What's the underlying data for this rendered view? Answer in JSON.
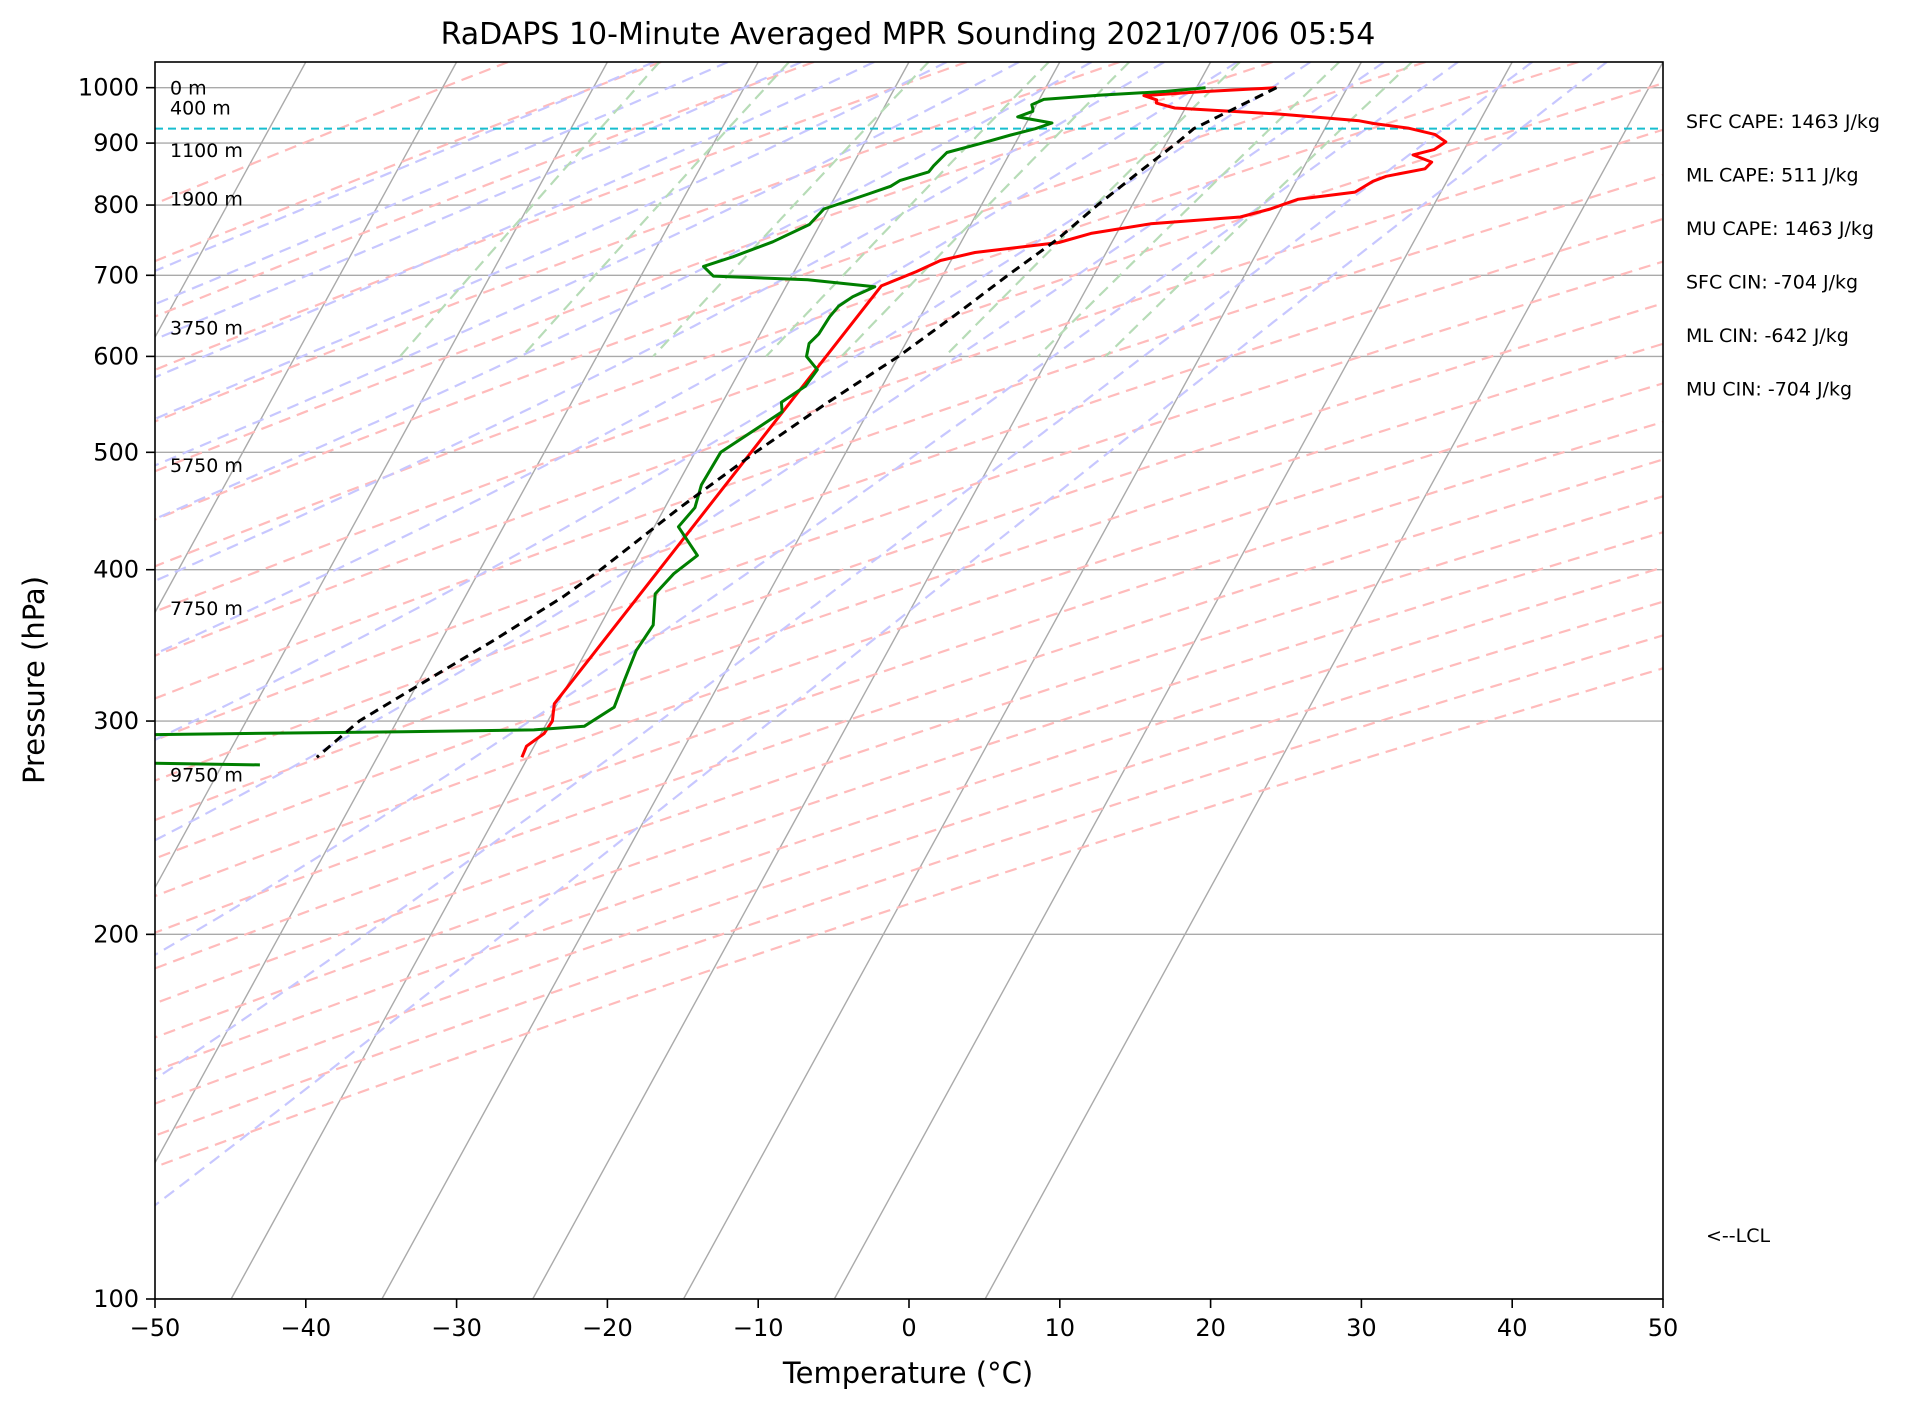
{
  "chart_data": {
    "type": "skew-t",
    "title": "RaDAPS 10-Minute Averaged MPR Sounding 2021/07/06 05:54",
    "xlabel": "Temperature (°C)",
    "ylabel": "Pressure (hPa)",
    "xlim": [
      -50,
      50
    ],
    "ylim": [
      1050,
      100
    ],
    "x_scale": "linear",
    "y_scale": "log",
    "x_ticks": [
      -50,
      -40,
      -30,
      -20,
      -10,
      0,
      10,
      20,
      30,
      40,
      50
    ],
    "x_tick_labels": [
      "−50",
      "−40",
      "−30",
      "−20",
      "−10",
      "0",
      "10",
      "20",
      "30",
      "40",
      "50"
    ],
    "y_ticks": [
      1000,
      900,
      800,
      700,
      600,
      500,
      400,
      300,
      200,
      100
    ],
    "y_tick_labels": [
      "1000",
      "900",
      "800",
      "700",
      "600",
      "500",
      "400",
      "300",
      "200",
      "100"
    ],
    "grid": true,
    "lines": {
      "isotherm_color": "#aaaaaa",
      "dry_adiabat_color": "#ffbbbb",
      "moist_adiabat_color": "#c7c7ff",
      "mixing_ratio_color": "#b7dcb7",
      "lcl_color": "#17becf"
    },
    "series": [
      {
        "name": "temperature",
        "color": "#ff0000",
        "points": [
          [
            1000,
            25.3
          ],
          [
            992,
            20.3
          ],
          [
            985,
            16.8
          ],
          [
            977,
            17.8
          ],
          [
            971,
            17.9
          ],
          [
            962,
            19.3
          ],
          [
            951,
            26.5
          ],
          [
            939,
            32.0
          ],
          [
            934,
            33.1
          ],
          [
            926,
            35.5
          ],
          [
            915,
            37.5
          ],
          [
            902,
            38.5
          ],
          [
            889,
            38.0
          ],
          [
            880,
            36.8
          ],
          [
            868,
            38.3
          ],
          [
            857,
            38.1
          ],
          [
            845,
            35.8
          ],
          [
            837,
            35.1
          ],
          [
            820,
            34.3
          ],
          [
            809,
            30.8
          ],
          [
            794,
            29.3
          ],
          [
            782,
            27.6
          ],
          [
            772,
            21.9
          ],
          [
            758,
            18.3
          ],
          [
            745,
            16.5
          ],
          [
            731,
            11.3
          ],
          [
            720,
            9.3
          ],
          [
            705,
            8.1
          ],
          [
            686,
            6.3
          ],
          [
            310,
            -0.2
          ],
          [
            300,
            0.3
          ],
          [
            293,
            0.2
          ],
          [
            286,
            -0.5
          ],
          [
            280,
            -0.4
          ]
        ]
      },
      {
        "name": "dewpoint",
        "color": "#007f00",
        "points": [
          [
            1000,
            20.6
          ],
          [
            993,
            18.1
          ],
          [
            986,
            13.9
          ],
          [
            978,
            10.3
          ],
          [
            968,
            9.7
          ],
          [
            961,
            9.9
          ],
          [
            956,
            10.0
          ],
          [
            946,
            9.2
          ],
          [
            935,
            11.7
          ],
          [
            925,
            10.8
          ],
          [
            914,
            9.4
          ],
          [
            900,
            7.8
          ],
          [
            884,
            5.8
          ],
          [
            862,
            5.4
          ],
          [
            852,
            5.3
          ],
          [
            838,
            3.7
          ],
          [
            829,
            3.3
          ],
          [
            817,
            2.1
          ],
          [
            794,
            -0.3
          ],
          [
            771,
            -0.7
          ],
          [
            746,
            -2.5
          ],
          [
            725,
            -4.6
          ],
          [
            712,
            -6.2
          ],
          [
            699,
            -5.2
          ],
          [
            694,
            1.2
          ],
          [
            685,
            5.9
          ],
          [
            672,
            4.8
          ],
          [
            660,
            4.2
          ],
          [
            647,
            4.0
          ],
          [
            626,
            3.9
          ],
          [
            615,
            3.6
          ],
          [
            600,
            3.9
          ],
          [
            585,
            5.1
          ],
          [
            567,
            4.9
          ],
          [
            550,
            3.9
          ],
          [
            540,
            4.3
          ],
          [
            500,
            1.7
          ],
          [
            470,
            1.6
          ],
          [
            450,
            2.0
          ],
          [
            434,
            1.6
          ],
          [
            411,
            3.9
          ],
          [
            397,
            3.0
          ],
          [
            382,
            2.5
          ],
          [
            360,
            3.5
          ],
          [
            343,
            3.3
          ],
          [
            324,
            3.6
          ],
          [
            308,
            3.9
          ],
          [
            297,
            2.6
          ],
          [
            295,
            -0.6
          ],
          [
            294,
            -9.2
          ],
          [
            290,
            -50.0
          ],
          [
            287,
            -50.0
          ],
          [
            280,
            -50.0
          ],
          [
            276,
            -17.5
          ]
        ]
      },
      {
        "name": "parcel",
        "color": "#000000",
        "points": [
          [
            1000,
            25.3
          ],
          [
            925,
            21.3
          ],
          [
            900,
            20.7
          ],
          [
            850,
            19.2
          ],
          [
            800,
            17.7
          ],
          [
            750,
            16.3
          ],
          [
            700,
            14.3
          ],
          [
            650,
            12.3
          ],
          [
            600,
            10.0
          ],
          [
            550,
            7.0
          ],
          [
            500,
            4.0
          ],
          [
            450,
            1.0
          ],
          [
            400,
            -2.0
          ],
          [
            380,
            -3.5
          ],
          [
            350,
            -6.5
          ],
          [
            320,
            -10.0
          ],
          [
            300,
            -12.5
          ],
          [
            280,
            -14.0
          ]
        ]
      }
    ],
    "lcl_pressure": 925,
    "lcl_label": "<--LCL",
    "height_labels": [
      {
        "p": 1000,
        "text": "0 m"
      },
      {
        "p": 963,
        "text": "400 m"
      },
      {
        "p": 888,
        "text": "1100 m"
      },
      {
        "p": 810,
        "text": "1900 m"
      },
      {
        "p": 634,
        "text": "3750 m"
      },
      {
        "p": 488,
        "text": "5750 m"
      },
      {
        "p": 372,
        "text": "7750 m"
      },
      {
        "p": 271,
        "text": "9750 m"
      }
    ],
    "annotations": [
      "SFC CAPE: 1463 J/kg",
      "ML CAPE: 511 J/kg",
      "MU CAPE: 1463 J/kg",
      "SFC CIN: -704 J/kg",
      "ML CIN: -642 J/kg",
      "MU CIN: -704 J/kg"
    ]
  }
}
